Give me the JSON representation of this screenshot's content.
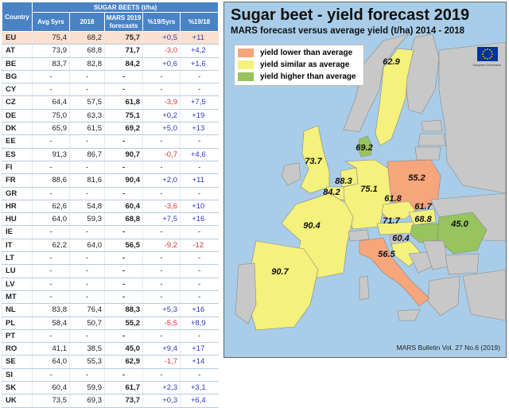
{
  "table": {
    "group_header": "SUGAR BEETS (t/ha)",
    "country_header": "Country",
    "col_headers": [
      "Avg 5yrs",
      "2018",
      "MARS 2019\nforecasts",
      "%19/5yrs",
      "%19/18"
    ],
    "rows": [
      [
        "EU",
        "75,4",
        "68,2",
        "75,7",
        "+0,5",
        "+11"
      ],
      [
        "AT",
        "73,9",
        "68,8",
        "71,7",
        "-3,0",
        "+4,2"
      ],
      [
        "BE",
        "83,7",
        "82,8",
        "84,2",
        "+0,6",
        "+1,6"
      ],
      [
        "BG",
        "-",
        "-",
        "-",
        "-",
        "-"
      ],
      [
        "CY",
        "-",
        "-",
        "-",
        "-",
        "-"
      ],
      [
        "CZ",
        "64,4",
        "57,5",
        "61,8",
        "-3,9",
        "+7,5"
      ],
      [
        "DE",
        "75,0",
        "63,3",
        "75,1",
        "+0,2",
        "+19"
      ],
      [
        "DK",
        "65,9",
        "61,5",
        "69,2",
        "+5,0",
        "+13"
      ],
      [
        "EE",
        "-",
        "-",
        "-",
        "-",
        "-"
      ],
      [
        "ES",
        "91,3",
        "86,7",
        "90,7",
        "-0,7",
        "+4,6"
      ],
      [
        "FI",
        "-",
        "-",
        "-",
        "-",
        "-"
      ],
      [
        "FR",
        "88,6",
        "81,6",
        "90,4",
        "+2,0",
        "+11"
      ],
      [
        "GR",
        "-",
        "-",
        "-",
        "-",
        "-"
      ],
      [
        "HR",
        "62,6",
        "54,8",
        "60,4",
        "-3,6",
        "+10"
      ],
      [
        "HU",
        "64,0",
        "59,3",
        "68,8",
        "+7,5",
        "+16"
      ],
      [
        "IE",
        "-",
        "-",
        "-",
        "-",
        "-"
      ],
      [
        "IT",
        "62,2",
        "64,0",
        "56,5",
        "-9,2",
        "-12"
      ],
      [
        "LT",
        "-",
        "-",
        "-",
        "-",
        "-"
      ],
      [
        "LU",
        "-",
        "-",
        "-",
        "-",
        "-"
      ],
      [
        "LV",
        "-",
        "-",
        "-",
        "-",
        "-"
      ],
      [
        "MT",
        "-",
        "-",
        "-",
        "-",
        "-"
      ],
      [
        "NL",
        "83,8",
        "76,4",
        "88,3",
        "+5,3",
        "+16"
      ],
      [
        "PL",
        "58,4",
        "50,7",
        "55,2",
        "-5,5",
        "+8,9"
      ],
      [
        "PT",
        "-",
        "-",
        "-",
        "-",
        "-"
      ],
      [
        "RO",
        "41,1",
        "38,5",
        "45,0",
        "+9,4",
        "+17"
      ],
      [
        "SE",
        "64,0",
        "55,3",
        "62,9",
        "-1,7",
        "+14"
      ],
      [
        "SI",
        "-",
        "-",
        "-",
        "-",
        "-"
      ],
      [
        "SK",
        "60,4",
        "59,9",
        "61,7",
        "+2,3",
        "+3,1"
      ],
      [
        "UK",
        "73,5",
        "69,3",
        "73,7",
        "+0,3",
        "+6,4"
      ]
    ]
  },
  "map": {
    "title": "Sugar beet - yield forecast 2019",
    "subtitle": "MARS forecast versus average yield (t/ha) 2014 - 2018",
    "legend": [
      {
        "label": "yield lower than average",
        "color": "#f7a57b"
      },
      {
        "label": "yield similar as average",
        "color": "#f4f17c"
      },
      {
        "label": "yield higher than average",
        "color": "#97c45e"
      }
    ],
    "ec_text": "European Commission",
    "footer": "MARS Bulletin Vol. 27 No.6 (2019)",
    "country_labels": [
      {
        "code": "SE",
        "text": "62.9"
      },
      {
        "code": "DK",
        "text": "69.2"
      },
      {
        "code": "UK",
        "text": "73.7"
      },
      {
        "code": "NL",
        "text": "88.3"
      },
      {
        "code": "BE",
        "text": "84.2"
      },
      {
        "code": "DE",
        "text": "75.1"
      },
      {
        "code": "PL",
        "text": "55.2"
      },
      {
        "code": "CZ",
        "text": "61.8"
      },
      {
        "code": "SK",
        "text": "61.7"
      },
      {
        "code": "AT",
        "text": "71.7"
      },
      {
        "code": "HU",
        "text": "68.8"
      },
      {
        "code": "RO",
        "text": "45.0"
      },
      {
        "code": "FR",
        "text": "90.4"
      },
      {
        "code": "HR",
        "text": "60.4"
      },
      {
        "code": "IT",
        "text": "56.5"
      },
      {
        "code": "ES",
        "text": "90.7"
      }
    ]
  },
  "colors": {
    "header_blue": "#4a82c6",
    "eu_row": "#fbe0cf",
    "negative": "#e03030",
    "positive": "#2a36c6",
    "sea": "#a9cde8",
    "non_eu": "#c8c8c8"
  },
  "chart_data": {
    "type": "table",
    "title": "SUGAR BEETS (t/ha)",
    "columns": [
      "Country",
      "Avg 5yrs",
      "2018",
      "MARS 2019 forecasts",
      "%19/5yrs",
      "%19/18"
    ],
    "rows": [
      [
        "EU",
        75.4,
        68.2,
        75.7,
        0.5,
        11
      ],
      [
        "AT",
        73.9,
        68.8,
        71.7,
        -3.0,
        4.2
      ],
      [
        "BE",
        83.7,
        82.8,
        84.2,
        0.6,
        1.6
      ],
      [
        "CZ",
        64.4,
        57.5,
        61.8,
        -3.9,
        7.5
      ],
      [
        "DE",
        75.0,
        63.3,
        75.1,
        0.2,
        19
      ],
      [
        "DK",
        65.9,
        61.5,
        69.2,
        5.0,
        13
      ],
      [
        "ES",
        91.3,
        86.7,
        90.7,
        -0.7,
        4.6
      ],
      [
        "FR",
        88.6,
        81.6,
        90.4,
        2.0,
        11
      ],
      [
        "HR",
        62.6,
        54.8,
        60.4,
        -3.6,
        10
      ],
      [
        "HU",
        64.0,
        59.3,
        68.8,
        7.5,
        16
      ],
      [
        "IT",
        62.2,
        64.0,
        56.5,
        -9.2,
        -12
      ],
      [
        "NL",
        83.8,
        76.4,
        88.3,
        5.3,
        16
      ],
      [
        "PL",
        58.4,
        50.7,
        55.2,
        -5.5,
        8.9
      ],
      [
        "RO",
        41.1,
        38.5,
        45.0,
        9.4,
        17
      ],
      [
        "SE",
        64.0,
        55.3,
        62.9,
        -1.7,
        14
      ],
      [
        "SK",
        60.4,
        59.9,
        61.7,
        2.3,
        3.1
      ],
      [
        "UK",
        73.5,
        69.3,
        73.7,
        0.3,
        6.4
      ]
    ],
    "no_data_countries": [
      "BG",
      "CY",
      "EE",
      "FI",
      "GR",
      "IE",
      "LT",
      "LU",
      "LV",
      "MT",
      "PT",
      "SI"
    ],
    "map_categories": {
      "lower": [
        "PL",
        "IT"
      ],
      "similar": [
        "SE",
        "UK",
        "NL",
        "BE",
        "DE",
        "CZ",
        "SK",
        "AT",
        "FR",
        "HR",
        "ES"
      ],
      "higher": [
        "DK",
        "HU",
        "RO"
      ]
    }
  }
}
